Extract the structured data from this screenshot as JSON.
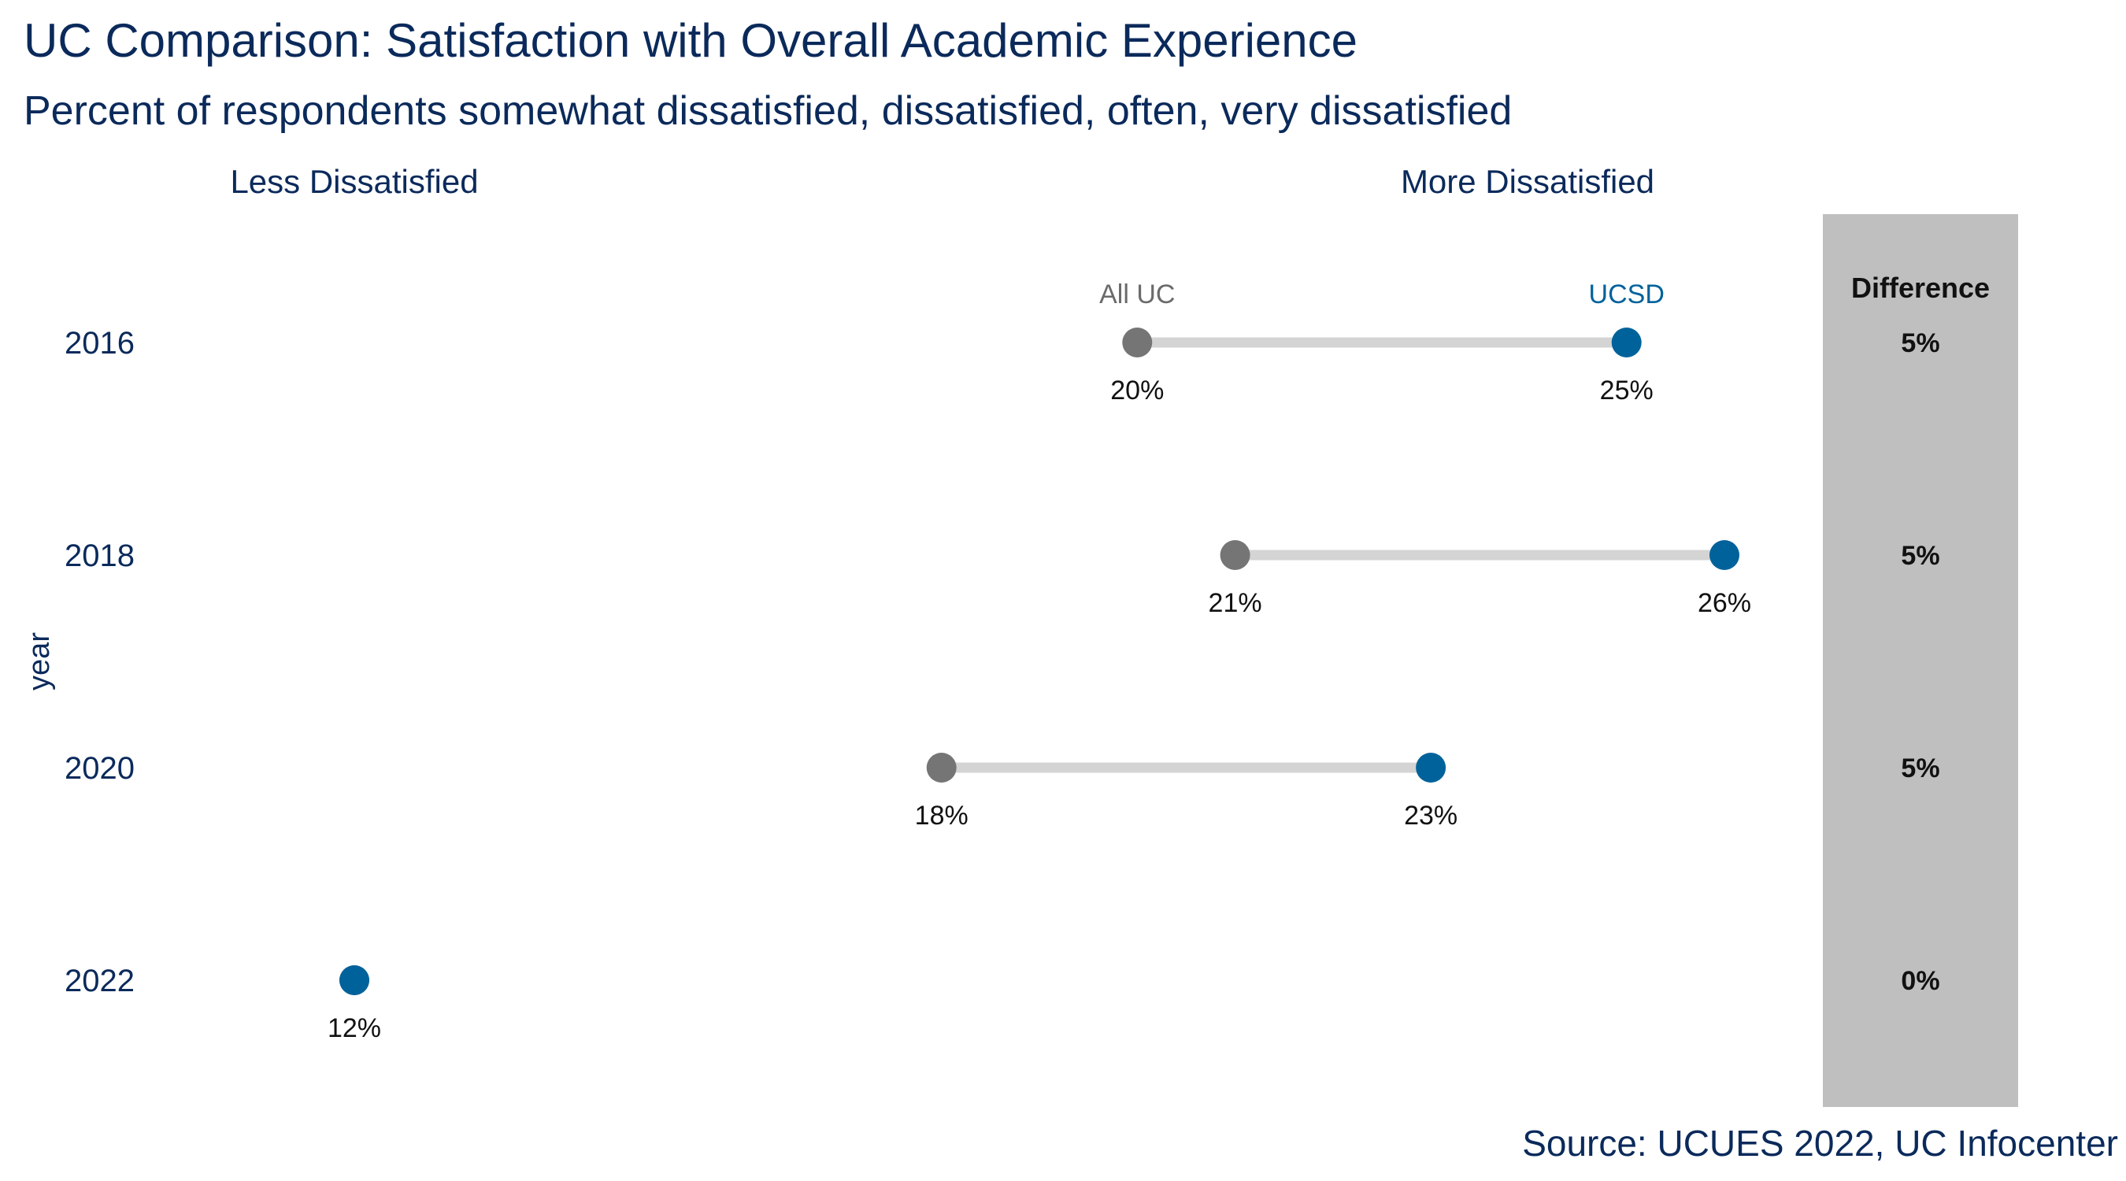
{
  "chart_data": {
    "type": "dumbbell",
    "title": "UC Comparison: Satisfaction with Overall Academic Experience",
    "subtitle": "Percent of respondents somewhat dissatisfied, dissatisfied,  often, very dissatisfied",
    "ylabel": "year",
    "xlabel": "",
    "direction_labels": {
      "left": "Less Dissatisfied",
      "right": "More Dissatisfied"
    },
    "categories": [
      "2016",
      "2018",
      "2020",
      "2022"
    ],
    "series": [
      {
        "name": "All UC",
        "values": [
          20,
          21,
          18,
          12
        ],
        "labels": [
          "20%",
          "21%",
          "18%",
          "12%"
        ]
      },
      {
        "name": "UCSD",
        "values": [
          25,
          26,
          23,
          12
        ],
        "labels": [
          "25%",
          "26%",
          "23%",
          "12%"
        ]
      }
    ],
    "difference": {
      "header": "Difference",
      "labels": [
        "5%",
        "5%",
        "5%",
        "0%"
      ]
    },
    "x_range": [
      12,
      26
    ],
    "grid": false,
    "source": "Source: UCUES 2022, UC Infocenter",
    "colors": {
      "all_uc": "#757575",
      "all_uc_label": "#6b6b6b",
      "ucsd": "#00629b",
      "connector": "#d4d4d4",
      "title": "#0b2a5b",
      "difference_panel": "#bfbfbf",
      "value_text": "#111111"
    }
  }
}
